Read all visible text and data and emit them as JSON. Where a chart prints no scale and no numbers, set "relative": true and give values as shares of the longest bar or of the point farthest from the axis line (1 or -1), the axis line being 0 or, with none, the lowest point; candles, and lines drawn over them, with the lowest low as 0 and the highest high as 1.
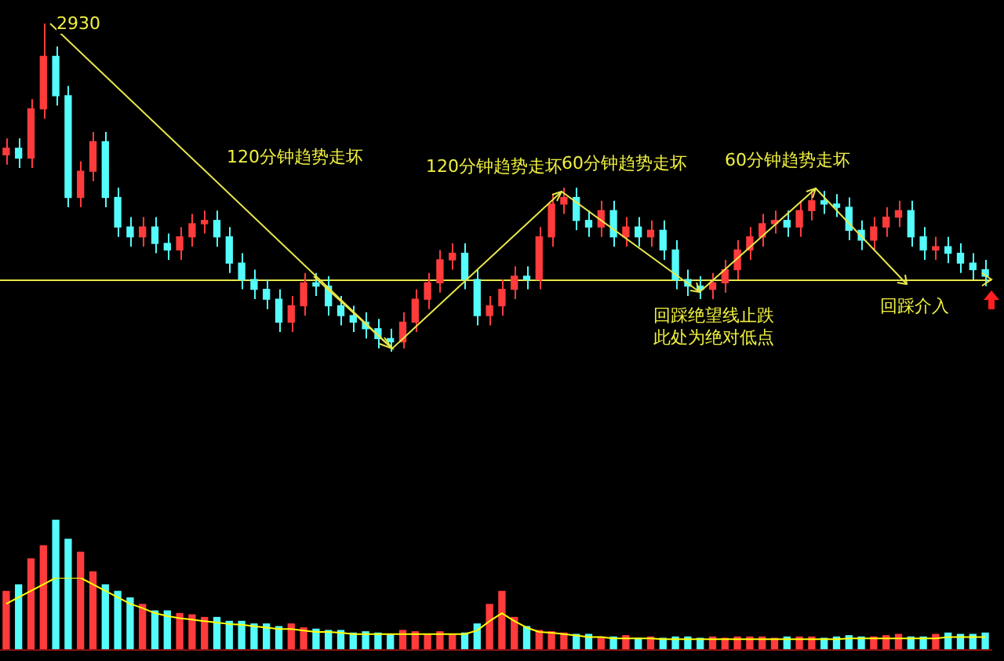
{
  "chart_data": [
    {
      "type": "candlestick",
      "relative": true,
      "categories": [
        null,
        null,
        null,
        null,
        null,
        null,
        null,
        null,
        null,
        null,
        null,
        null,
        null,
        null,
        null,
        null,
        null,
        null,
        null,
        null,
        null,
        null,
        null,
        null,
        null,
        null,
        null,
        null,
        null,
        null,
        null,
        null,
        null,
        null,
        null,
        null,
        null,
        null,
        null,
        null,
        null,
        null,
        null,
        null,
        null,
        null,
        null,
        null,
        null,
        null,
        null,
        null,
        null,
        null,
        null,
        null,
        null,
        null,
        null,
        null,
        null,
        null,
        null,
        null,
        null,
        null,
        null,
        null,
        null,
        null,
        null,
        null,
        null,
        null,
        null,
        null,
        null,
        null,
        null,
        null
      ],
      "ohlc": [
        [
          0.6,
          0.65,
          0.57,
          0.62
        ],
        [
          0.62,
          0.65,
          0.56,
          0.59
        ],
        [
          0.59,
          0.77,
          0.56,
          0.74
        ],
        [
          0.74,
          1.0,
          0.71,
          0.9
        ],
        [
          0.9,
          0.93,
          0.75,
          0.78
        ],
        [
          0.78,
          0.81,
          0.44,
          0.47
        ],
        [
          0.47,
          0.58,
          0.44,
          0.55
        ],
        [
          0.55,
          0.67,
          0.52,
          0.64
        ],
        [
          0.64,
          0.67,
          0.44,
          0.47
        ],
        [
          0.47,
          0.5,
          0.35,
          0.38
        ],
        [
          0.38,
          0.41,
          0.32,
          0.35
        ],
        [
          0.35,
          0.41,
          0.32,
          0.38
        ],
        [
          0.38,
          0.41,
          0.3,
          0.33
        ],
        [
          0.33,
          0.36,
          0.28,
          0.31
        ],
        [
          0.31,
          0.38,
          0.28,
          0.35
        ],
        [
          0.35,
          0.42,
          0.32,
          0.39
        ],
        [
          0.39,
          0.43,
          0.36,
          0.4
        ],
        [
          0.4,
          0.43,
          0.32,
          0.35
        ],
        [
          0.35,
          0.38,
          0.24,
          0.27
        ],
        [
          0.27,
          0.3,
          0.19,
          0.22
        ],
        [
          0.22,
          0.25,
          0.16,
          0.19
        ],
        [
          0.19,
          0.22,
          0.13,
          0.16
        ],
        [
          0.16,
          0.19,
          0.06,
          0.09
        ],
        [
          0.09,
          0.17,
          0.06,
          0.14
        ],
        [
          0.14,
          0.24,
          0.11,
          0.21
        ],
        [
          0.21,
          0.24,
          0.17,
          0.2
        ],
        [
          0.2,
          0.23,
          0.11,
          0.14
        ],
        [
          0.14,
          0.17,
          0.08,
          0.11
        ],
        [
          0.11,
          0.14,
          0.06,
          0.09
        ],
        [
          0.09,
          0.12,
          0.04,
          0.07
        ],
        [
          0.07,
          0.1,
          0.01,
          0.04
        ],
        [
          0.04,
          0.07,
          0.0,
          0.03
        ],
        [
          0.03,
          0.12,
          0.01,
          0.09
        ],
        [
          0.09,
          0.19,
          0.06,
          0.16
        ],
        [
          0.16,
          0.24,
          0.13,
          0.21
        ],
        [
          0.21,
          0.31,
          0.18,
          0.28
        ],
        [
          0.28,
          0.33,
          0.25,
          0.3
        ],
        [
          0.3,
          0.33,
          0.19,
          0.22
        ],
        [
          0.22,
          0.25,
          0.08,
          0.11
        ],
        [
          0.11,
          0.17,
          0.08,
          0.14
        ],
        [
          0.14,
          0.22,
          0.11,
          0.19
        ],
        [
          0.19,
          0.26,
          0.16,
          0.23
        ],
        [
          0.23,
          0.26,
          0.19,
          0.22
        ],
        [
          0.22,
          0.38,
          0.19,
          0.35
        ],
        [
          0.35,
          0.48,
          0.32,
          0.45
        ],
        [
          0.45,
          0.5,
          0.42,
          0.47
        ],
        [
          0.47,
          0.5,
          0.37,
          0.4
        ],
        [
          0.4,
          0.43,
          0.35,
          0.38
        ],
        [
          0.38,
          0.46,
          0.35,
          0.43
        ],
        [
          0.43,
          0.46,
          0.32,
          0.35
        ],
        [
          0.35,
          0.41,
          0.32,
          0.38
        ],
        [
          0.38,
          0.41,
          0.32,
          0.35
        ],
        [
          0.35,
          0.4,
          0.32,
          0.37
        ],
        [
          0.37,
          0.4,
          0.28,
          0.31
        ],
        [
          0.31,
          0.34,
          0.19,
          0.22
        ],
        [
          0.22,
          0.25,
          0.17,
          0.2
        ],
        [
          0.2,
          0.23,
          0.16,
          0.19
        ],
        [
          0.19,
          0.24,
          0.16,
          0.21
        ],
        [
          0.21,
          0.28,
          0.18,
          0.25
        ],
        [
          0.25,
          0.34,
          0.22,
          0.31
        ],
        [
          0.31,
          0.38,
          0.28,
          0.35
        ],
        [
          0.35,
          0.42,
          0.32,
          0.39
        ],
        [
          0.39,
          0.43,
          0.36,
          0.4
        ],
        [
          0.4,
          0.43,
          0.35,
          0.38
        ],
        [
          0.38,
          0.46,
          0.35,
          0.43
        ],
        [
          0.43,
          0.49,
          0.4,
          0.46
        ],
        [
          0.46,
          0.49,
          0.42,
          0.45
        ],
        [
          0.45,
          0.48,
          0.41,
          0.44
        ],
        [
          0.44,
          0.47,
          0.34,
          0.37
        ],
        [
          0.37,
          0.4,
          0.31,
          0.34
        ],
        [
          0.34,
          0.41,
          0.31,
          0.38
        ],
        [
          0.38,
          0.44,
          0.35,
          0.41
        ],
        [
          0.41,
          0.46,
          0.38,
          0.43
        ],
        [
          0.43,
          0.46,
          0.32,
          0.35
        ],
        [
          0.35,
          0.38,
          0.28,
          0.31
        ],
        [
          0.31,
          0.35,
          0.28,
          0.32
        ],
        [
          0.32,
          0.35,
          0.27,
          0.3
        ],
        [
          0.3,
          0.33,
          0.24,
          0.27
        ],
        [
          0.27,
          0.3,
          0.22,
          0.25
        ],
        [
          0.25,
          0.28,
          0.2,
          0.23
        ]
      ],
      "colors": [
        "#ff3b3b",
        "#54fcfc",
        "#ff3b3b",
        "#ff3b3b",
        "#54fcfc",
        "#54fcfc",
        "#ff3b3b",
        "#ff3b3b",
        "#54fcfc",
        "#54fcfc",
        "#54fcfc",
        "#ff3b3b",
        "#54fcfc",
        "#54fcfc",
        "#ff3b3b",
        "#ff3b3b",
        "#ff3b3b",
        "#54fcfc",
        "#54fcfc",
        "#54fcfc",
        "#54fcfc",
        "#54fcfc",
        "#54fcfc",
        "#ff3b3b",
        "#ff3b3b",
        "#54fcfc",
        "#54fcfc",
        "#54fcfc",
        "#54fcfc",
        "#54fcfc",
        "#54fcfc",
        "#54fcfc",
        "#ff3b3b",
        "#ff3b3b",
        "#ff3b3b",
        "#ff3b3b",
        "#ff3b3b",
        "#54fcfc",
        "#54fcfc",
        "#ff3b3b",
        "#ff3b3b",
        "#ff3b3b",
        "#54fcfc",
        "#ff3b3b",
        "#ff3b3b",
        "#ff3b3b",
        "#54fcfc",
        "#54fcfc",
        "#ff3b3b",
        "#54fcfc",
        "#ff3b3b",
        "#54fcfc",
        "#ff3b3b",
        "#54fcfc",
        "#54fcfc",
        "#54fcfc",
        "#54fcfc",
        "#ff3b3b",
        "#ff3b3b",
        "#ff3b3b",
        "#ff3b3b",
        "#ff3b3b",
        "#ff3b3b",
        "#54fcfc",
        "#ff3b3b",
        "#ff3b3b",
        "#54fcfc",
        "#54fcfc",
        "#54fcfc",
        "#54fcfc",
        "#ff3b3b",
        "#ff3b3b",
        "#ff3b3b",
        "#54fcfc",
        "#54fcfc",
        "#ff3b3b",
        "#54fcfc",
        "#54fcfc",
        "#54fcfc",
        "#54fcfc"
      ],
      "ref_lines": [
        {
          "axis": "y",
          "value": 0.22,
          "color": "#e6e64c"
        }
      ],
      "annotations": [
        "2930",
        "120分钟趋势走坏",
        "120分钟趋势走坏",
        "60分钟趋势走坏",
        "60分钟趋势走坏",
        "回踩绝望线止跌",
        "此处为绝对低点",
        "回踩介入"
      ]
    },
    {
      "type": "bar",
      "relative": true,
      "categories": [
        null,
        null,
        null,
        null,
        null,
        null,
        null,
        null,
        null,
        null,
        null,
        null,
        null,
        null,
        null,
        null,
        null,
        null,
        null,
        null,
        null,
        null,
        null,
        null,
        null,
        null,
        null,
        null,
        null,
        null,
        null,
        null,
        null,
        null,
        null,
        null,
        null,
        null,
        null,
        null,
        null,
        null,
        null,
        null,
        null,
        null,
        null,
        null,
        null,
        null,
        null,
        null,
        null,
        null,
        null,
        null,
        null,
        null,
        null,
        null,
        null,
        null,
        null,
        null,
        null,
        null,
        null,
        null,
        null,
        null,
        null,
        null,
        null,
        null,
        null,
        null,
        null,
        null,
        null,
        null
      ],
      "values": [
        0.45,
        0.5,
        0.7,
        0.8,
        1.0,
        0.85,
        0.75,
        0.6,
        0.5,
        0.45,
        0.4,
        0.35,
        0.3,
        0.3,
        0.28,
        0.27,
        0.25,
        0.25,
        0.22,
        0.22,
        0.2,
        0.2,
        0.18,
        0.2,
        0.17,
        0.16,
        0.15,
        0.15,
        0.13,
        0.14,
        0.13,
        0.12,
        0.15,
        0.14,
        0.12,
        0.14,
        0.12,
        0.13,
        0.2,
        0.35,
        0.45,
        0.25,
        0.18,
        0.15,
        0.14,
        0.13,
        0.12,
        0.12,
        0.1,
        0.1,
        0.11,
        0.09,
        0.1,
        0.09,
        0.1,
        0.1,
        0.09,
        0.1,
        0.09,
        0.1,
        0.1,
        0.1,
        0.09,
        0.1,
        0.1,
        0.1,
        0.09,
        0.1,
        0.11,
        0.1,
        0.1,
        0.11,
        0.12,
        0.1,
        0.1,
        0.12,
        0.13,
        0.12,
        0.12,
        0.13
      ],
      "colors": [
        "#ff3b3b",
        "#54fcfc",
        "#ff3b3b",
        "#ff3b3b",
        "#54fcfc",
        "#54fcfc",
        "#ff3b3b",
        "#ff3b3b",
        "#54fcfc",
        "#54fcfc",
        "#54fcfc",
        "#ff3b3b",
        "#54fcfc",
        "#54fcfc",
        "#ff3b3b",
        "#ff3b3b",
        "#ff3b3b",
        "#54fcfc",
        "#54fcfc",
        "#54fcfc",
        "#54fcfc",
        "#54fcfc",
        "#54fcfc",
        "#ff3b3b",
        "#ff3b3b",
        "#54fcfc",
        "#54fcfc",
        "#54fcfc",
        "#54fcfc",
        "#54fcfc",
        "#54fcfc",
        "#54fcfc",
        "#ff3b3b",
        "#ff3b3b",
        "#ff3b3b",
        "#ff3b3b",
        "#ff3b3b",
        "#54fcfc",
        "#54fcfc",
        "#ff3b3b",
        "#ff3b3b",
        "#ff3b3b",
        "#54fcfc",
        "#ff3b3b",
        "#ff3b3b",
        "#ff3b3b",
        "#54fcfc",
        "#54fcfc",
        "#ff3b3b",
        "#54fcfc",
        "#ff3b3b",
        "#54fcfc",
        "#ff3b3b",
        "#54fcfc",
        "#54fcfc",
        "#54fcfc",
        "#54fcfc",
        "#ff3b3b",
        "#ff3b3b",
        "#ff3b3b",
        "#ff3b3b",
        "#ff3b3b",
        "#ff3b3b",
        "#54fcfc",
        "#ff3b3b",
        "#ff3b3b",
        "#54fcfc",
        "#54fcfc",
        "#54fcfc",
        "#54fcfc",
        "#ff3b3b",
        "#ff3b3b",
        "#ff3b3b",
        "#54fcfc",
        "#54fcfc",
        "#ff3b3b",
        "#54fcfc",
        "#54fcfc",
        "#54fcfc",
        "#54fcfc"
      ]
    },
    {
      "type": "line",
      "relative": true,
      "color": "#ffff00",
      "categories": [
        null,
        null,
        null,
        null,
        null,
        null,
        null,
        null,
        null,
        null,
        null,
        null,
        null,
        null,
        null,
        null,
        null,
        null,
        null,
        null,
        null,
        null,
        null,
        null,
        null,
        null,
        null,
        null,
        null,
        null,
        null,
        null,
        null,
        null,
        null,
        null,
        null,
        null,
        null,
        null,
        null,
        null,
        null,
        null,
        null,
        null,
        null,
        null,
        null,
        null,
        null,
        null,
        null,
        null,
        null,
        null,
        null,
        null,
        null,
        null,
        null,
        null,
        null,
        null,
        null,
        null,
        null,
        null,
        null,
        null,
        null,
        null,
        null,
        null,
        null,
        null,
        null,
        null,
        null,
        null
      ],
      "values": [
        0.64,
        0.73,
        0.82,
        0.91,
        1.0,
        1.0,
        1.0,
        0.91,
        0.82,
        0.73,
        0.64,
        0.58,
        0.51,
        0.47,
        0.44,
        0.42,
        0.4,
        0.38,
        0.36,
        0.35,
        0.33,
        0.31,
        0.29,
        0.29,
        0.27,
        0.25,
        0.25,
        0.24,
        0.22,
        0.22,
        0.22,
        0.22,
        0.22,
        0.22,
        0.22,
        0.22,
        0.22,
        0.22,
        0.27,
        0.4,
        0.51,
        0.4,
        0.31,
        0.25,
        0.24,
        0.22,
        0.2,
        0.18,
        0.18,
        0.16,
        0.16,
        0.16,
        0.16,
        0.15,
        0.15,
        0.15,
        0.15,
        0.15,
        0.15,
        0.15,
        0.15,
        0.15,
        0.15,
        0.15,
        0.15,
        0.15,
        0.15,
        0.15,
        0.16,
        0.16,
        0.16,
        0.16,
        0.16,
        0.16,
        0.16,
        0.16,
        0.18,
        0.18,
        0.18,
        0.18
      ]
    }
  ]
}
